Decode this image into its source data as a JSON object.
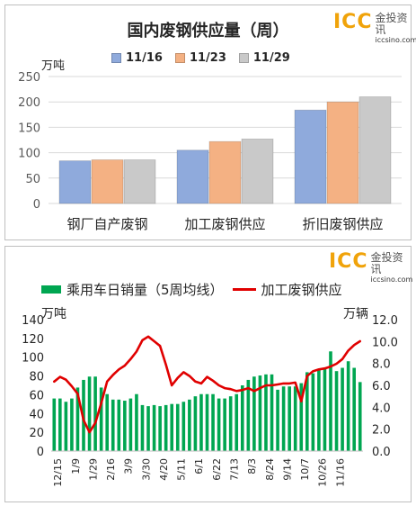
{
  "chart_data": [
    {
      "type": "bar",
      "title": "国内废钢供应量（周）",
      "ylabel": "万吨",
      "ylim": [
        0,
        250
      ],
      "yticks": [
        0,
        50,
        100,
        150,
        200,
        250
      ],
      "grid": true,
      "legend_position": "top",
      "categories": [
        "钢厂自产废钢",
        "加工废钢供应",
        "折旧废钢供应"
      ],
      "series": [
        {
          "name": "11/16",
          "color": "#8faadc",
          "values": [
            84,
            105,
            184
          ]
        },
        {
          "name": "11/23",
          "color": "#f4b183",
          "values": [
            86,
            122,
            200
          ]
        },
        {
          "name": "11/29",
          "color": "#c9c9c9",
          "values": [
            86,
            127,
            210
          ]
        }
      ]
    },
    {
      "type": "bar",
      "ylabel_left": "万吨",
      "ylabel_right": "万辆",
      "ylim_left": [
        0,
        140
      ],
      "ylim_right": [
        0.0,
        12.0
      ],
      "yticks_left": [
        0,
        20,
        40,
        60,
        80,
        100,
        120,
        140
      ],
      "yticks_right": [
        "0.0",
        "2.0",
        "4.0",
        "6.0",
        "8.0",
        "10.0",
        "12.0"
      ],
      "legend_position": "top",
      "x_tick_labels": [
        "12/15",
        "1/9",
        "1/29",
        "2/16",
        "3/9",
        "3/30",
        "4/20",
        "5/11",
        "6/1",
        "6/22",
        "7/13",
        "8/3",
        "8/24",
        "9/14",
        "10/7",
        "10/26",
        "11/16"
      ],
      "series": [
        {
          "name": "乘用车日销量（5周均线）",
          "type": "bar",
          "axis": "right",
          "color": "#00a651",
          "values": [
            4.8,
            4.8,
            4.5,
            4.8,
            5.8,
            6.5,
            6.8,
            6.8,
            5.8,
            5.2,
            4.7,
            4.7,
            4.6,
            4.8,
            5.2,
            4.2,
            4.1,
            4.2,
            4.1,
            4.2,
            4.3,
            4.3,
            4.5,
            4.7,
            5.0,
            5.2,
            5.2,
            5.2,
            4.8,
            4.8,
            5.0,
            5.2,
            6.0,
            6.5,
            6.8,
            6.9,
            7.0,
            7.0,
            5.6,
            5.9,
            5.9,
            5.9,
            6.2,
            7.2,
            7.1,
            7.5,
            7.6,
            9.1,
            7.3,
            7.6,
            8.2,
            7.6,
            6.3
          ]
        },
        {
          "name": "加工废钢供应",
          "type": "line",
          "axis": "left",
          "color": "#e00000",
          "values": [
            74,
            79,
            76,
            69,
            61,
            33,
            20,
            30,
            51,
            74,
            81,
            87,
            91,
            98,
            106,
            118,
            122,
            117,
            112,
            92,
            70,
            78,
            84,
            80,
            74,
            72,
            79,
            75,
            70,
            67,
            66,
            64,
            65,
            67,
            64,
            67,
            70,
            70,
            71,
            72,
            72,
            73,
            53,
            80,
            85,
            87,
            88,
            90,
            93,
            98,
            107,
            113,
            117
          ]
        }
      ]
    }
  ],
  "brand": {
    "logo_text": "ICC",
    "logo_cn": "金投资讯",
    "logo_url": "iccsino.com"
  }
}
